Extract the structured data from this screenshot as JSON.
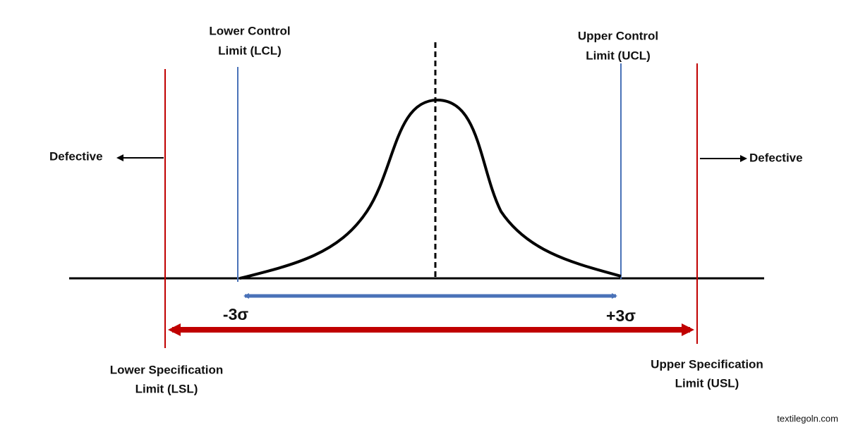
{
  "diagram": {
    "lcl_label": [
      "Lower Control",
      "Limit (LCL)"
    ],
    "ucl_label": [
      "Upper Control",
      "Limit (UCL)"
    ],
    "lsl_label": [
      "Lower Specification",
      "Limit (LSL)"
    ],
    "usl_label": [
      "Upper Specification",
      "Limit (USL)"
    ],
    "left_defective": "Defective",
    "right_defective": "Defective",
    "minus_sigma": "-3σ",
    "plus_sigma": "+3σ",
    "source": "textilegoln.com"
  }
}
